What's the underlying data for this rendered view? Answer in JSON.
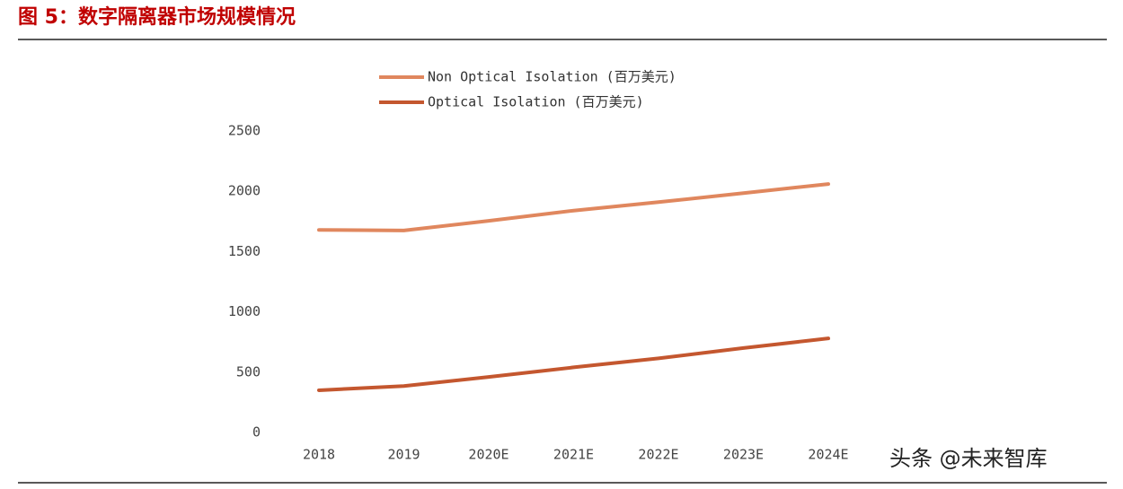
{
  "header": {
    "title": "图 5：数字隔离器市场规模情况"
  },
  "chart_data": {
    "type": "line",
    "categories": [
      "2018",
      "2019",
      "2020E",
      "2021E",
      "2022E",
      "2023E",
      "2024E"
    ],
    "series": [
      {
        "name": "Non Optical Isolation (百万美元)",
        "color": "#e0875e",
        "values": [
          1680,
          1675,
          1755,
          1840,
          1910,
          1985,
          2060
        ]
      },
      {
        "name": "Optical Isolation (百万美元)",
        "color": "#c4572f",
        "values": [
          350,
          385,
          460,
          540,
          615,
          700,
          780
        ]
      }
    ],
    "ylim": [
      0,
      2500
    ],
    "yticks": [
      0,
      500,
      1000,
      1500,
      2000,
      2500
    ],
    "grid": false,
    "legend_position": "top"
  },
  "footer": {
    "watermark": "头条 @未来智库"
  }
}
